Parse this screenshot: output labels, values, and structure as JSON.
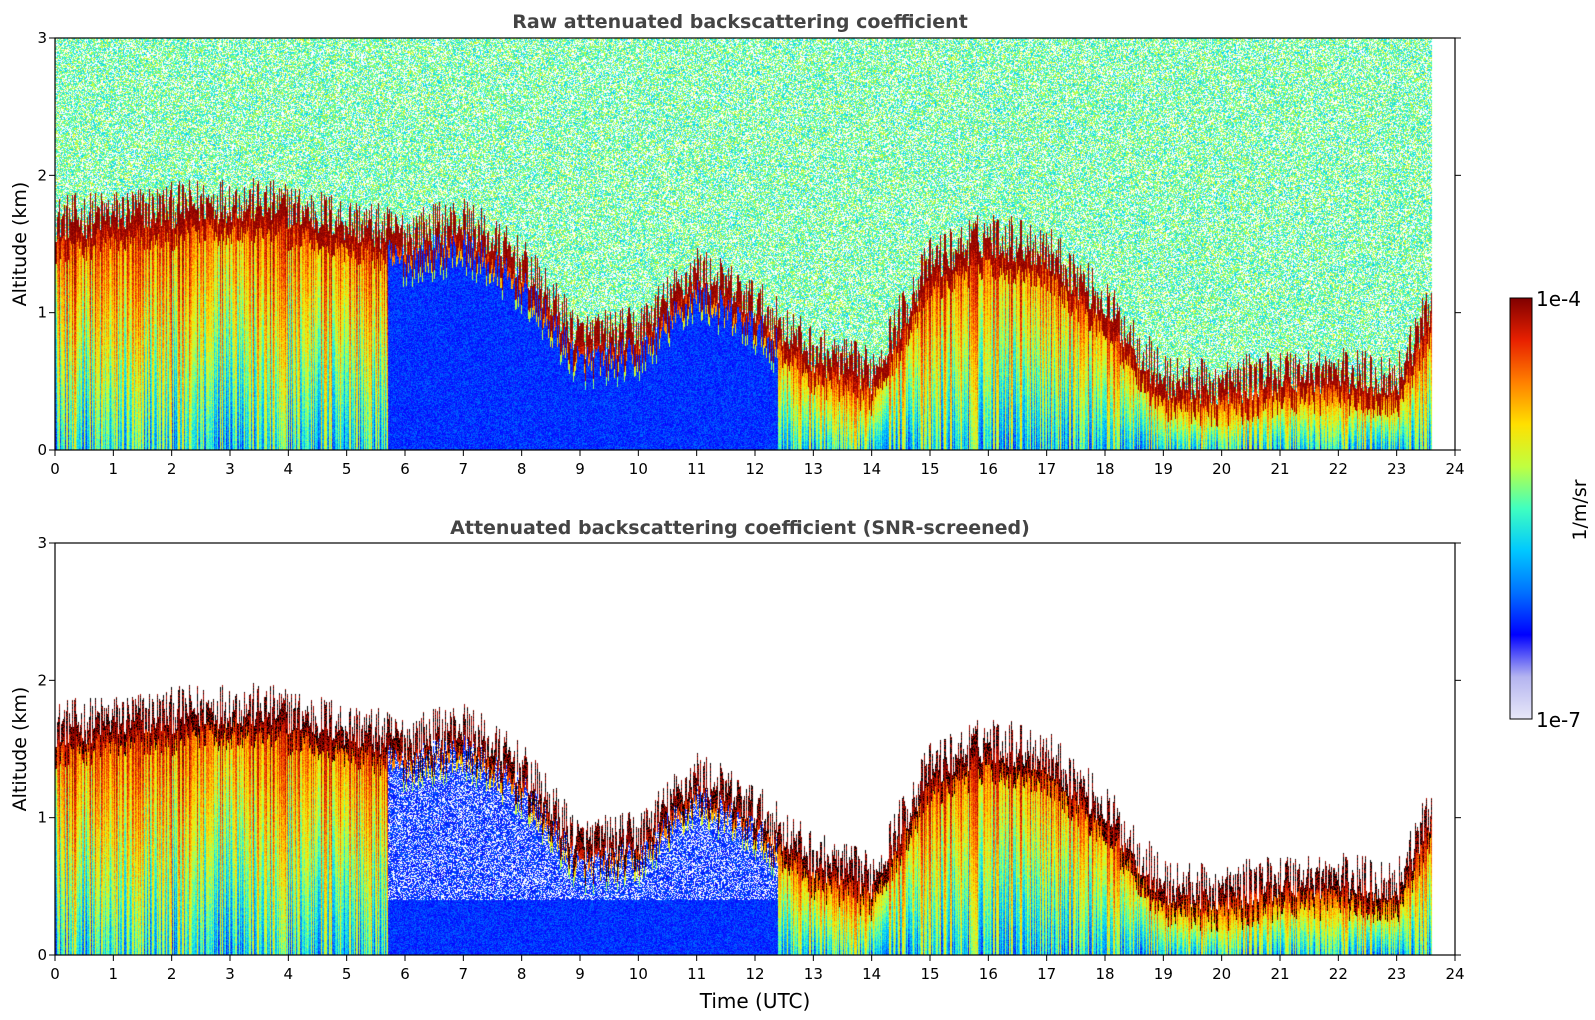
{
  "chart_data": [
    {
      "type": "heatmap",
      "title": "Raw attenuated backscattering coefficient",
      "ylabel": "Altitude (km)",
      "xlabel": "",
      "xlim": [
        0,
        24
      ],
      "ylim": [
        0,
        3
      ],
      "xticks": [
        "0",
        "1",
        "2",
        "3",
        "4",
        "5",
        "6",
        "7",
        "8",
        "9",
        "10",
        "11",
        "12",
        "13",
        "14",
        "15",
        "16",
        "17",
        "18",
        "19",
        "20",
        "21",
        "22",
        "23",
        "24"
      ],
      "yticks": [
        "0",
        "1",
        "2",
        "3"
      ],
      "data_end_time": 23.6,
      "screened": false,
      "features": {
        "boundary_layer_top_km": [
          {
            "t": 0.0,
            "z": 1.6
          },
          {
            "t": 1.0,
            "z": 1.65
          },
          {
            "t": 2.0,
            "z": 1.7
          },
          {
            "t": 3.0,
            "z": 1.75
          },
          {
            "t": 4.0,
            "z": 1.7
          },
          {
            "t": 5.0,
            "z": 1.6
          },
          {
            "t": 6.0,
            "z": 1.5
          },
          {
            "t": 7.0,
            "z": 1.6
          },
          {
            "t": 8.0,
            "z": 1.3
          },
          {
            "t": 9.0,
            "z": 0.75
          },
          {
            "t": 10.0,
            "z": 0.8
          },
          {
            "t": 11.0,
            "z": 1.25
          },
          {
            "t": 12.0,
            "z": 1.0
          },
          {
            "t": 13.0,
            "z": 0.65
          },
          {
            "t": 14.0,
            "z": 0.5
          },
          {
            "t": 15.0,
            "z": 1.3
          },
          {
            "t": 16.0,
            "z": 1.5
          },
          {
            "t": 17.0,
            "z": 1.4
          },
          {
            "t": 18.0,
            "z": 1.0
          },
          {
            "t": 19.0,
            "z": 0.45
          },
          {
            "t": 20.0,
            "z": 0.4
          },
          {
            "t": 21.0,
            "z": 0.5
          },
          {
            "t": 22.0,
            "z": 0.5
          },
          {
            "t": 23.0,
            "z": 0.45
          },
          {
            "t": 23.6,
            "z": 1.0
          }
        ]
      }
    },
    {
      "type": "heatmap",
      "title": "Attenuated backscattering coefficient (SNR-screened)",
      "ylabel": "Altitude (km)",
      "xlabel": "Time (UTC)",
      "xlim": [
        0,
        24
      ],
      "ylim": [
        0,
        3
      ],
      "xticks": [
        "0",
        "1",
        "2",
        "3",
        "4",
        "5",
        "6",
        "7",
        "8",
        "9",
        "10",
        "11",
        "12",
        "13",
        "14",
        "15",
        "16",
        "17",
        "18",
        "19",
        "20",
        "21",
        "22",
        "23",
        "24"
      ],
      "yticks": [
        "0",
        "1",
        "2",
        "3"
      ],
      "data_end_time": 23.6,
      "screened": true
    }
  ],
  "colorbar": {
    "label": "1/m/sr",
    "max_label": "1e-4",
    "min_label": "1e-7",
    "colormap": [
      "#e8e8f8",
      "#b4b4f0",
      "#0000ff",
      "#0070ff",
      "#00c8ff",
      "#40ffc0",
      "#c0ff40",
      "#ffe000",
      "#ff8000",
      "#e82000",
      "#800000"
    ]
  }
}
